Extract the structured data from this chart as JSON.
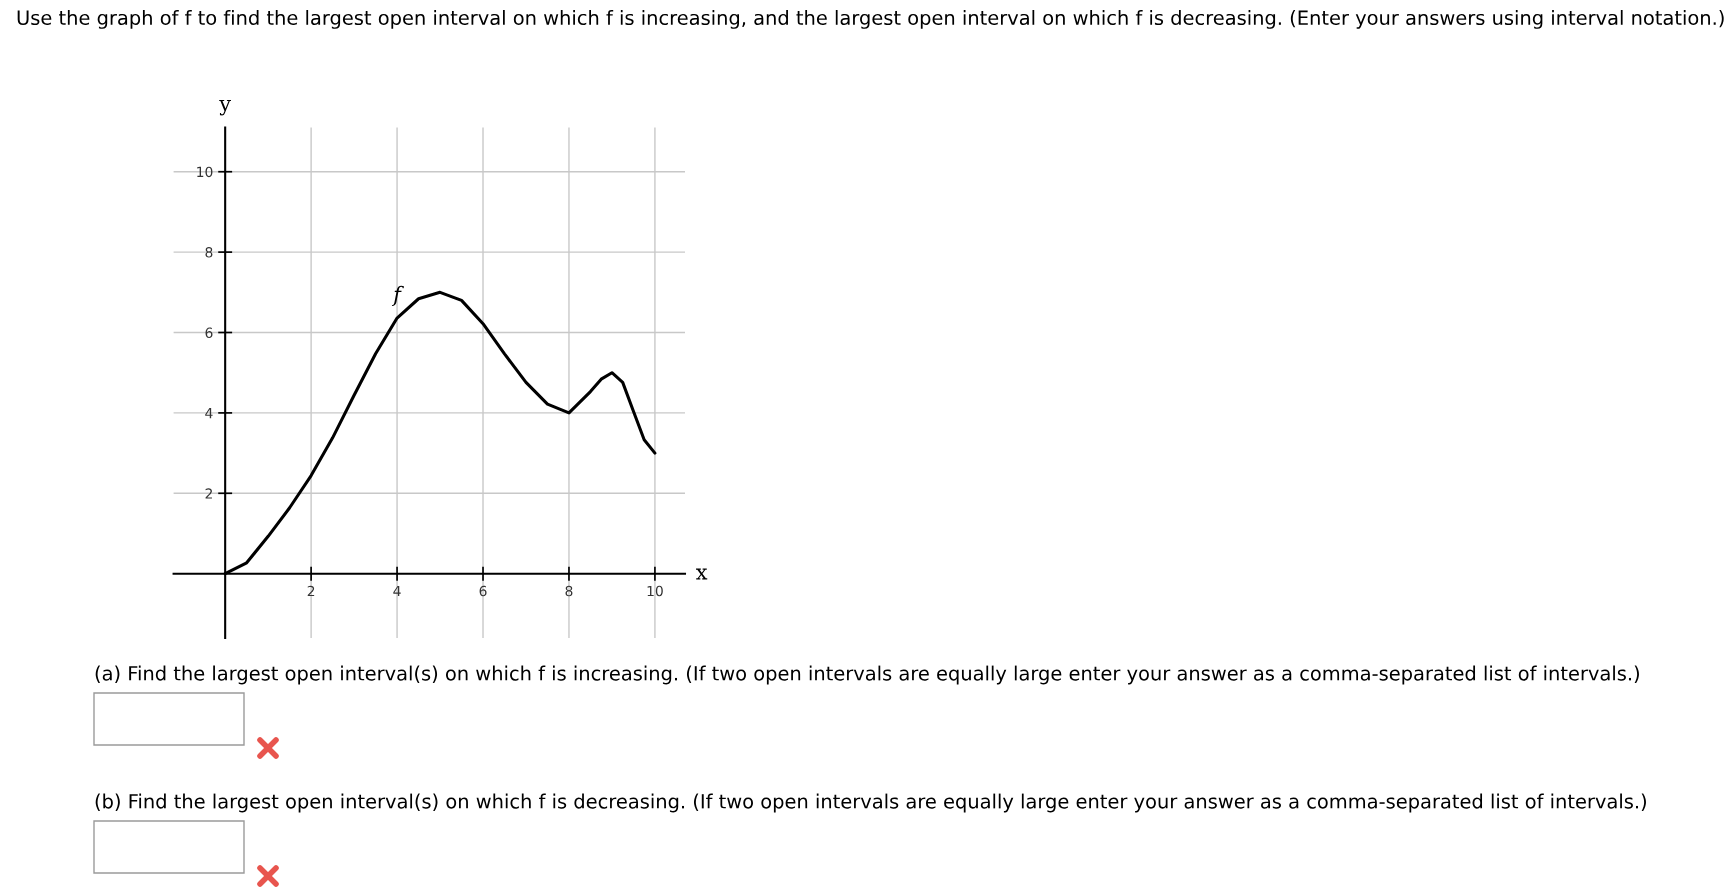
{
  "chart_data": {
    "type": "line",
    "title": "Use the graph of f to find the largest open interval on which f is increasing, and the largest open interval on which f is decreasing. (Enter your answers using interval notation.)",
    "xlabel": "x",
    "ylabel": "y",
    "x": [
      0,
      0.5,
      1,
      1.5,
      2,
      2.5,
      3,
      3.5,
      4,
      4.5,
      5,
      5.5,
      6,
      6.5,
      7,
      7.5,
      8,
      8.5,
      8.75,
      9,
      9.25,
      9.5,
      9.75,
      10
    ],
    "series": [
      {
        "name": "f",
        "color": "#000000",
        "values": [
          0,
          0.27,
          0.93,
          1.64,
          2.44,
          3.38,
          4.44,
          5.47,
          6.36,
          6.84,
          7.0,
          6.8,
          6.22,
          5.47,
          4.76,
          4.22,
          4.0,
          4.53,
          4.84,
          5.0,
          4.76,
          4.04,
          3.33,
          3.0
        ]
      }
    ],
    "xlim": [
      -1.2,
      10.7
    ],
    "ylim": [
      -1.6,
      11.1
    ],
    "xticks": [
      2,
      4,
      6,
      8,
      10
    ],
    "yticks": [
      2,
      4,
      6,
      8,
      10
    ],
    "grid": true,
    "marker": "none",
    "line_style": "solid",
    "annotations": [
      "(a) Find the largest open interval(s) on which f is increasing. (If two open intervals are equally large enter your answer as a comma-separated list of intervals.)",
      "(b) Find the largest open interval(s) on which f is decreasing. (If two open intervals are equally large enter your answer as a comma-separated list of intervals.)"
    ]
  }
}
